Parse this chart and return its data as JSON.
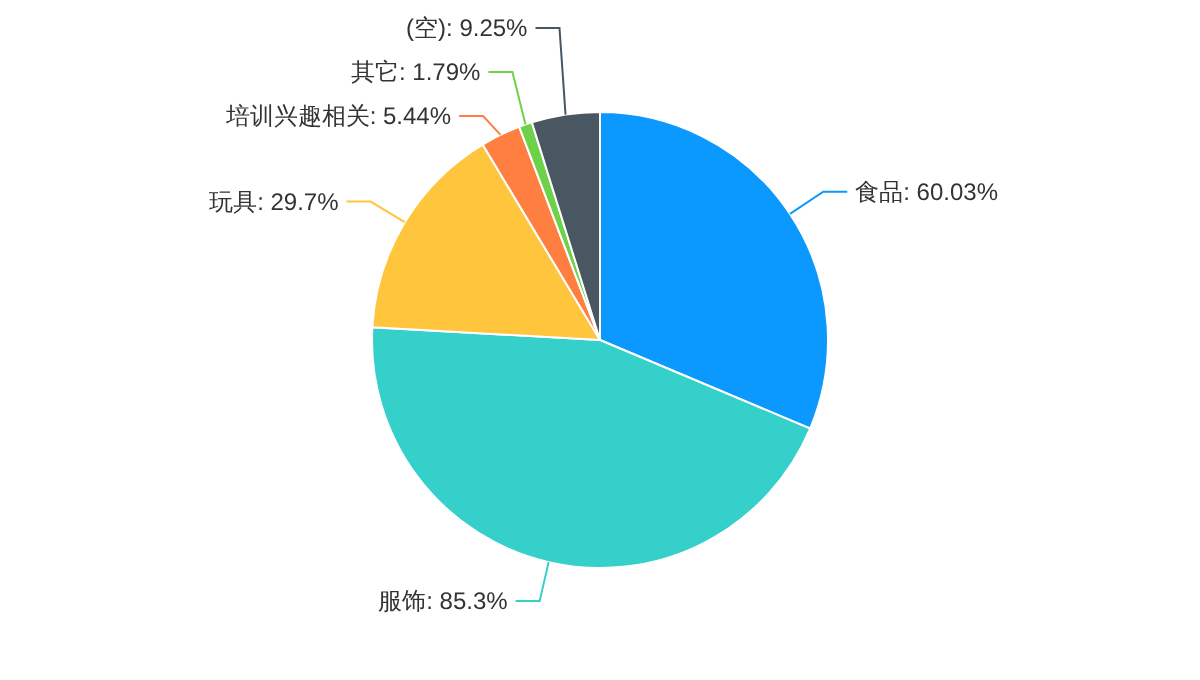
{
  "chart_data": {
    "type": "pie",
    "categories": [
      "食品",
      "服饰",
      "玩具",
      "培训兴趣相关",
      "其它",
      "(空)"
    ],
    "values": [
      60.03,
      85.3,
      29.7,
      5.44,
      1.79,
      9.25
    ],
    "value_labels": [
      ": 60.03%",
      ": 85.3%",
      ": 29.7%",
      ": 5.44%",
      ": 1.79%",
      ": 9.25%"
    ],
    "colors": [
      "#0c99ff",
      "#36d0cb",
      "#ffc53d",
      "#ff7f41",
      "#6dd14a",
      "#485761"
    ],
    "legend": false
  }
}
